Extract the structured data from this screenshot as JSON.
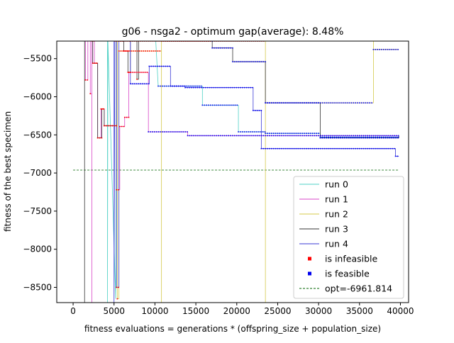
{
  "chart_data": {
    "type": "line",
    "title": "g06  -  nsga2  -  optimum gap(average): 8.48%",
    "xlabel": "fitness evaluations = generations * (offspring_size + population_size)",
    "ylabel": "fitness of the best specimen",
    "xlim": [
      -2000,
      41000
    ],
    "ylim": [
      -8700,
      -5270
    ],
    "x_ticks": [
      0,
      5000,
      10000,
      15000,
      20000,
      25000,
      30000,
      35000,
      40000
    ],
    "x_tick_labels": [
      "0",
      "5000",
      "10000",
      "15000",
      "20000",
      "25000",
      "30000",
      "35000",
      "40000"
    ],
    "y_ticks": [
      -8500,
      -8000,
      -7500,
      -7000,
      -6500,
      -6000,
      -5500
    ],
    "y_tick_labels": [
      "−8500",
      "−8000",
      "−7500",
      "−7000",
      "−6500",
      "−6000",
      "−5500"
    ],
    "grid": false,
    "legend_position": "lower-right",
    "legend": [
      {
        "label": "run 0",
        "kind": "line",
        "color": "#4fd1c5"
      },
      {
        "label": "run 1",
        "kind": "line",
        "color": "#d946c8"
      },
      {
        "label": "run 2",
        "kind": "line",
        "color": "#d4c94a"
      },
      {
        "label": "run 3",
        "kind": "line",
        "color": "#333333"
      },
      {
        "label": "run 4",
        "kind": "line",
        "color": "#3b3bd6"
      },
      {
        "label": "is infeasible",
        "kind": "marker",
        "color": "#ff0000"
      },
      {
        "label": "is feasible",
        "kind": "marker",
        "color": "#0000ee"
      },
      {
        "label": "opt=-6961.814",
        "kind": "dashed",
        "color": "#006400"
      }
    ],
    "optimum": -6961.814,
    "optimum_x_range": [
      0,
      39800
    ],
    "series": [
      {
        "name": "run 0",
        "color": "#4fd1c5",
        "points": [
          [
            4200,
            -4000
          ],
          [
            4200,
            -8700
          ],
          [
            4250,
            -5270
          ],
          [
            5200,
            -8650
          ],
          [
            5300,
            -5000
          ],
          [
            9200,
            -5000
          ],
          [
            10100,
            -5270
          ],
          [
            10400,
            -5860
          ],
          [
            15800,
            -5860
          ],
          [
            15800,
            -6110
          ],
          [
            20200,
            -6110
          ],
          [
            20200,
            -6460
          ],
          [
            23500,
            -6460
          ],
          [
            23500,
            -6480
          ],
          [
            30200,
            -6480
          ],
          [
            30200,
            -6530
          ],
          [
            39800,
            -6530
          ],
          [
            39800,
            -6510
          ]
        ],
        "feasible_from": 5300
      },
      {
        "name": "run 1",
        "color": "#d946c8",
        "points": [
          [
            1200,
            -4500
          ],
          [
            1200,
            -5230
          ],
          [
            1500,
            -5230
          ],
          [
            1500,
            -5780
          ],
          [
            1800,
            -5780
          ],
          [
            1800,
            -5250
          ],
          [
            2100,
            -5250
          ],
          [
            2100,
            -5960
          ],
          [
            2300,
            -5960
          ],
          [
            2300,
            -8700
          ],
          [
            2300,
            -5270
          ],
          [
            2600,
            -5270
          ],
          [
            2600,
            -5560
          ],
          [
            3000,
            -5560
          ],
          [
            3000,
            -6540
          ],
          [
            3400,
            -6540
          ],
          [
            3400,
            -6160
          ],
          [
            3800,
            -6160
          ],
          [
            3800,
            -6380
          ],
          [
            5300,
            -6380
          ],
          [
            5300,
            -7220
          ],
          [
            5700,
            -7220
          ],
          [
            5700,
            -6390
          ],
          [
            6300,
            -6390
          ],
          [
            6300,
            -6270
          ],
          [
            6800,
            -6270
          ],
          [
            6800,
            -5680
          ],
          [
            9200,
            -5680
          ],
          [
            9200,
            -6460
          ],
          [
            14000,
            -6460
          ],
          [
            14000,
            -6510
          ],
          [
            39800,
            -6510
          ]
        ],
        "feasible_from": 9200
      },
      {
        "name": "run 2",
        "color": "#d4c94a",
        "points": [
          [
            5400,
            -5270
          ],
          [
            5400,
            -8650
          ],
          [
            5600,
            -8650
          ],
          [
            5600,
            -5400
          ],
          [
            10800,
            -5400
          ],
          [
            10800,
            -8700
          ],
          [
            10800,
            -5270
          ],
          [
            23500,
            -5270
          ],
          [
            23500,
            -8700
          ],
          [
            23500,
            -6080
          ],
          [
            36700,
            -6080
          ],
          [
            36700,
            -5270
          ],
          [
            36700,
            -5380
          ],
          [
            39800,
            -5380
          ]
        ],
        "feasible_from": 23500
      },
      {
        "name": "run 3",
        "color": "#333333",
        "points": [
          [
            1400,
            -5300
          ],
          [
            1400,
            -8700
          ],
          [
            1400,
            -4800
          ],
          [
            2400,
            -4800
          ],
          [
            2400,
            -5560
          ],
          [
            3000,
            -5560
          ],
          [
            3000,
            -6540
          ],
          [
            3500,
            -6540
          ],
          [
            3500,
            -6160
          ],
          [
            3800,
            -6160
          ],
          [
            3800,
            -6380
          ],
          [
            5300,
            -6380
          ],
          [
            5300,
            -5270
          ],
          [
            6200,
            -5270
          ],
          [
            6200,
            -5400
          ],
          [
            6700,
            -5400
          ],
          [
            6700,
            -5680
          ],
          [
            7000,
            -5680
          ],
          [
            7000,
            -5270
          ],
          [
            7800,
            -5270
          ],
          [
            7800,
            -5770
          ],
          [
            8000,
            -5770
          ],
          [
            8000,
            -5270
          ],
          [
            17000,
            -5270
          ],
          [
            17000,
            -5360
          ],
          [
            19500,
            -5360
          ],
          [
            19500,
            -5540
          ],
          [
            23500,
            -5540
          ],
          [
            23500,
            -6080
          ],
          [
            30200,
            -6080
          ],
          [
            30200,
            -6540
          ],
          [
            39800,
            -6540
          ],
          [
            39800,
            -6510
          ]
        ],
        "feasible_from": 17000
      },
      {
        "name": "run 4",
        "color": "#3b3bd6",
        "points": [
          [
            5000,
            -5270
          ],
          [
            5000,
            -8700
          ],
          [
            5100,
            -5270
          ],
          [
            5300,
            -5270
          ],
          [
            5300,
            -8500
          ],
          [
            5600,
            -8500
          ],
          [
            5600,
            -5270
          ],
          [
            7000,
            -5270
          ],
          [
            7000,
            -5830
          ],
          [
            9300,
            -5830
          ],
          [
            9300,
            -5600
          ],
          [
            11900,
            -5600
          ],
          [
            11900,
            -5860
          ],
          [
            13700,
            -5860
          ],
          [
            13700,
            -5880
          ],
          [
            22000,
            -5880
          ],
          [
            22000,
            -6180
          ],
          [
            23000,
            -6180
          ],
          [
            23000,
            -6680
          ],
          [
            39400,
            -6680
          ],
          [
            39400,
            -6780
          ],
          [
            39800,
            -6780
          ]
        ],
        "feasible_from": 7000
      }
    ]
  }
}
